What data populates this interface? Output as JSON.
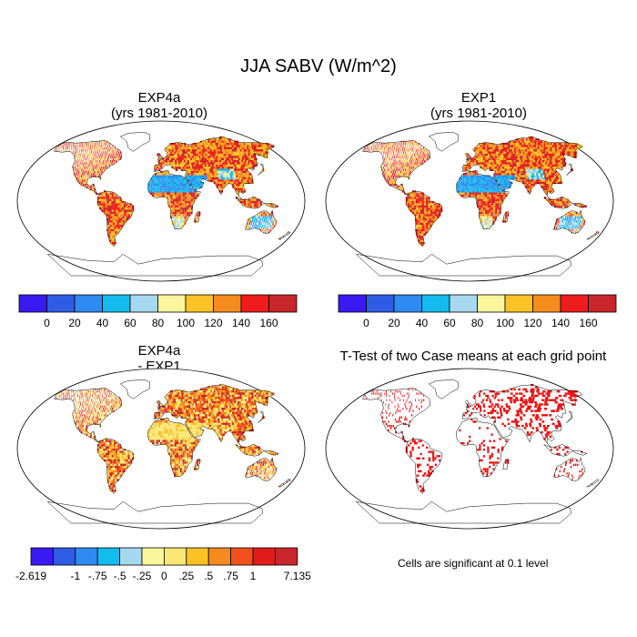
{
  "title": "JJA SABV (W/m^2)",
  "panels": [
    {
      "id": "p1",
      "title_line1": "EXP4a",
      "title_line2": "(yrs 1981-2010)"
    },
    {
      "id": "p2",
      "title_line1": "EXP1",
      "title_line2": "(yrs 1981-2010)"
    },
    {
      "id": "p3",
      "title_line1": "EXP4a",
      "title_line2": "- EXP1"
    },
    {
      "id": "p4",
      "title_line1": "T-Test of two Case means at each grid point",
      "title_line2": ""
    }
  ],
  "significance_note": "Cells are significant at 0.1 level",
  "colors": {
    "abs_scale": [
      "#3a19f2",
      "#2f5ce5",
      "#2f8af2",
      "#14bbee",
      "#a6d9ef",
      "#fbf59c",
      "#fbc226",
      "#f68b1d",
      "#ee1c1c",
      "#c9262c"
    ],
    "diff_scale": [
      "#3a19f2",
      "#2f5ce5",
      "#2f8af2",
      "#14bbee",
      "#a6d9ef",
      "#fbf59c",
      "#fbe774",
      "#fbc226",
      "#f68b1d",
      "#f4501e",
      "#e31a1c",
      "#c9262c"
    ],
    "significant": "#ee1111",
    "land_outline": "#000000"
  },
  "chart_data": [
    {
      "type": "heatmap",
      "panel": "EXP4a (yrs 1981-2010)",
      "colorbar_labels": [
        "0",
        "20",
        "40",
        "60",
        "80",
        "100",
        "120",
        "140",
        "160"
      ]
    },
    {
      "type": "heatmap",
      "panel": "EXP1 (yrs 1981-2010)",
      "colorbar_labels": [
        "0",
        "20",
        "40",
        "60",
        "80",
        "100",
        "120",
        "140",
        "160"
      ]
    },
    {
      "type": "heatmap",
      "panel": "EXP4a - EXP1",
      "colorbar_labels": [
        "-2.619",
        "-1",
        "-.75",
        "-.5",
        "-.25",
        "0",
        ".25",
        ".5",
        ".75",
        "1",
        "7.135"
      ]
    },
    {
      "type": "heatmap",
      "panel": "T-Test of two Case means at each grid point",
      "note": "Cells are significant at 0.1 level"
    }
  ]
}
